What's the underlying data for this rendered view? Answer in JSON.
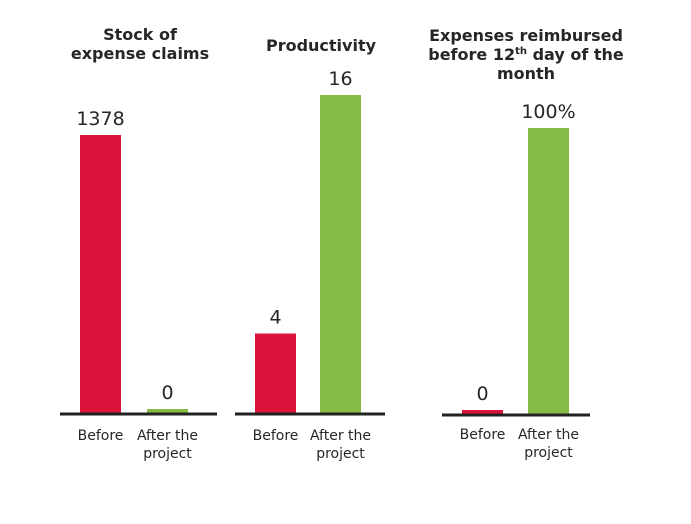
{
  "colors": {
    "before": "#DC143C",
    "after": "#86BC46",
    "baseline": "#222222",
    "text": "#262626"
  },
  "chart_data": [
    {
      "type": "bar",
      "title_lines": [
        "Stock of",
        "expense claims"
      ],
      "categories": [
        "Before",
        "After the project"
      ],
      "category_lines": [
        [
          "Before"
        ],
        [
          "After the",
          "project"
        ]
      ],
      "values": [
        1378,
        0
      ],
      "value_labels": [
        "1378",
        "0"
      ],
      "ylim": [
        0,
        1378
      ]
    },
    {
      "type": "bar",
      "title_lines": [
        "Productivity"
      ],
      "categories": [
        "Before",
        "After the project"
      ],
      "category_lines": [
        [
          "Before"
        ],
        [
          "After the",
          "project"
        ]
      ],
      "values": [
        4,
        16
      ],
      "value_labels": [
        "4",
        "16"
      ],
      "ylim": [
        0,
        16
      ]
    },
    {
      "type": "bar",
      "title_lines": [
        "Expenses reimbursed",
        "before 12th day of the",
        "month"
      ],
      "title_superscript": {
        "line": 1,
        "base": "before 12",
        "sup": "th",
        "rest": " day of the"
      },
      "categories": [
        "Before",
        "After the project"
      ],
      "category_lines": [
        [
          "Before"
        ],
        [
          "After the",
          "project"
        ]
      ],
      "values": [
        0,
        100
      ],
      "value_labels": [
        "0",
        "100%"
      ],
      "ylim": [
        0,
        100
      ]
    }
  ]
}
